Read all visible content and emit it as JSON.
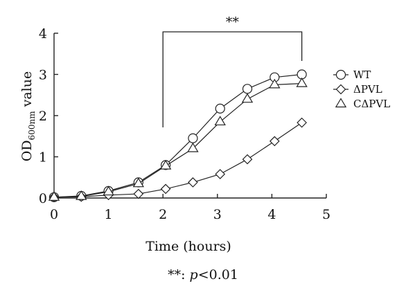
{
  "chart_data": {
    "type": "line",
    "title": "",
    "xlabel": "Time (hours)",
    "ylabel": {
      "main": "OD",
      "subscript": "600nm",
      "suffix": " value"
    },
    "xlim": [
      0,
      5
    ],
    "ylim": [
      0,
      4
    ],
    "xticks": [
      "0",
      "1",
      "2",
      "3",
      "4",
      "5"
    ],
    "yticks": [
      "0",
      "1",
      "2",
      "3",
      "4"
    ],
    "grid": false,
    "legend_position": "right",
    "series": [
      {
        "name": "WT",
        "marker": "circle",
        "x": [
          0,
          0.5,
          1,
          1.55,
          2.05,
          2.55,
          3.05,
          3.55,
          4.05,
          4.55
        ],
        "y": [
          0.02,
          0.05,
          0.17,
          0.38,
          0.8,
          1.45,
          2.17,
          2.65,
          2.93,
          3.0
        ]
      },
      {
        "name": "ΔPVL",
        "marker": "diamond",
        "x": [
          0,
          0.5,
          1,
          1.55,
          2.05,
          2.55,
          3.05,
          3.55,
          4.05,
          4.55
        ],
        "y": [
          0.02,
          0.03,
          0.07,
          0.1,
          0.22,
          0.38,
          0.58,
          0.94,
          1.38,
          1.83
        ]
      },
      {
        "name": "CΔPVL",
        "marker": "triangle",
        "x": [
          0,
          0.5,
          1,
          1.55,
          2.05,
          2.55,
          3.05,
          3.55,
          4.05,
          4.55
        ],
        "y": [
          0.02,
          0.04,
          0.15,
          0.35,
          0.78,
          1.2,
          1.85,
          2.4,
          2.75,
          2.78
        ]
      }
    ],
    "annotations": [
      {
        "type": "significance-bracket",
        "x_start": 2,
        "x_end": 4.55,
        "label": "**"
      }
    ],
    "footnote": {
      "stars": "**: ",
      "p": "p",
      "rest": "<0.01"
    }
  }
}
